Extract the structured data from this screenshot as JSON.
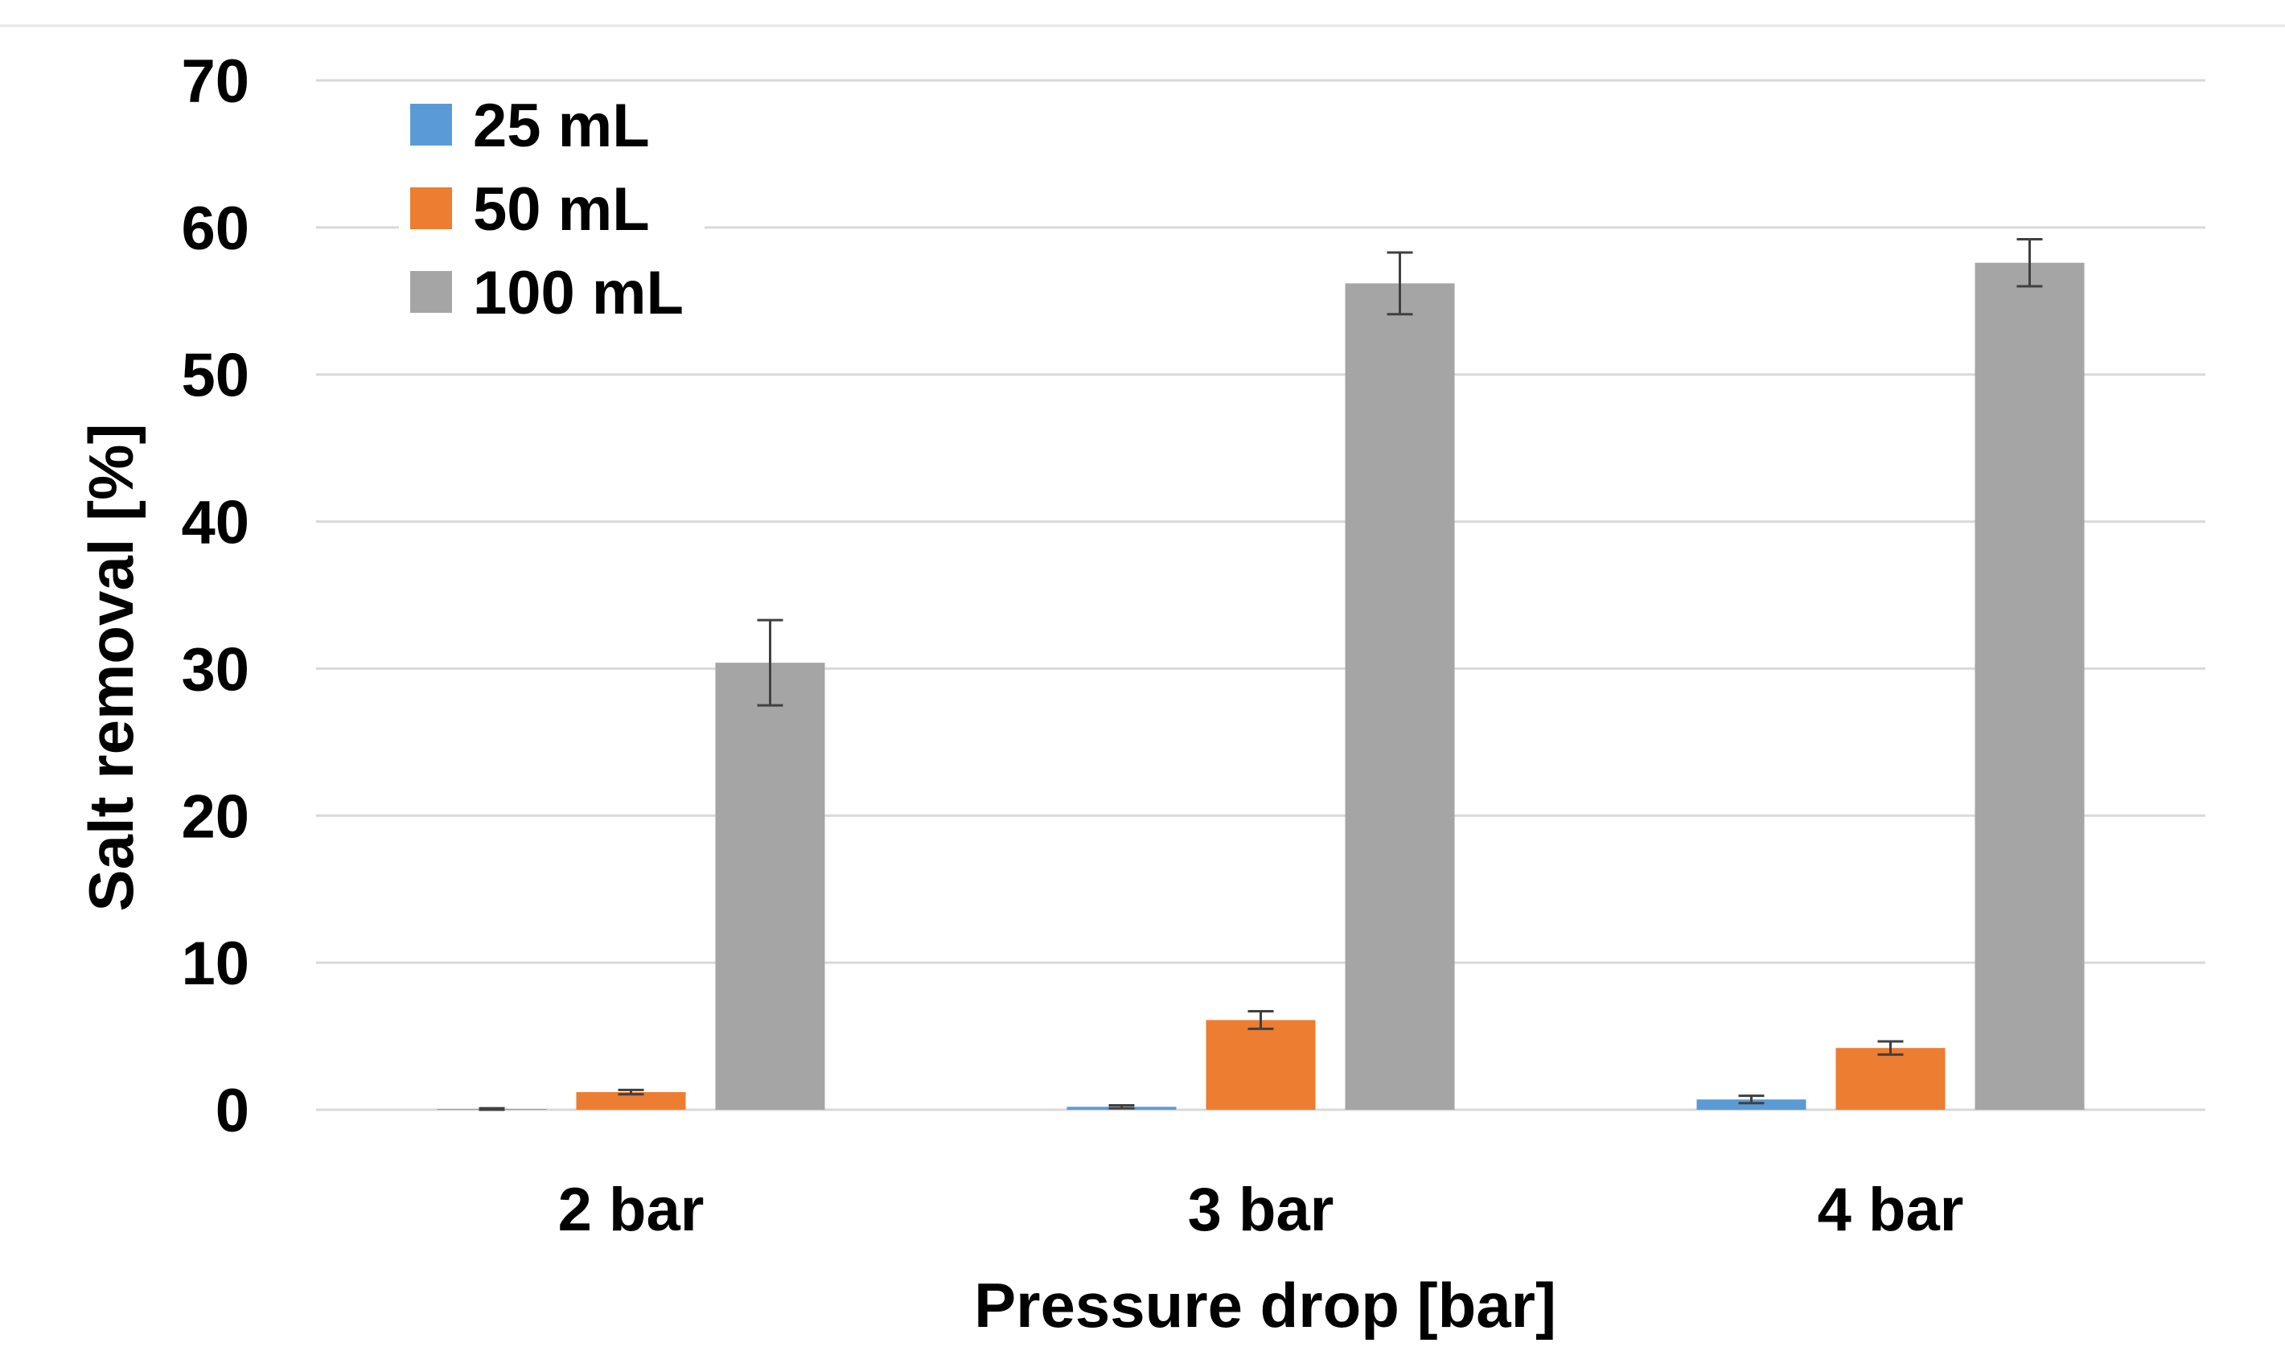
{
  "chart_data": {
    "type": "bar",
    "title": "",
    "xlabel": "Pressure drop [bar]",
    "ylabel": "Salt removal [%]",
    "ylim": [
      0,
      70
    ],
    "yticks": [
      "0",
      "10",
      "20",
      "30",
      "40",
      "50",
      "60",
      "70"
    ],
    "grid": true,
    "legend_position": "top-left",
    "categories": [
      "2 bar",
      "3 bar",
      "4 bar"
    ],
    "series": [
      {
        "name": "25 mL",
        "color": "#5B9BD5",
        "values": [
          0.05,
          0.2,
          0.7
        ],
        "errors": [
          0.05,
          0.1,
          0.25
        ]
      },
      {
        "name": "50 mL",
        "color": "#ED7D31",
        "values": [
          1.2,
          6.1,
          4.2
        ],
        "errors": [
          0.15,
          0.6,
          0.45
        ]
      },
      {
        "name": "100 mL",
        "color": "#A5A5A5",
        "values": [
          30.4,
          56.2,
          57.6
        ],
        "errors": [
          2.9,
          2.1,
          1.6
        ]
      }
    ]
  }
}
